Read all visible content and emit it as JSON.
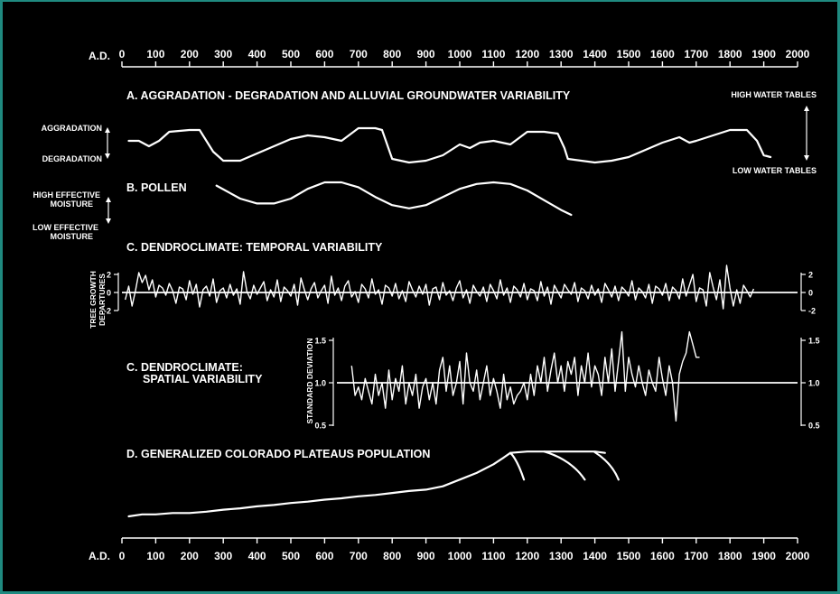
{
  "colors": {
    "background": "#000000",
    "foreground": "#ffffff",
    "border": "#1f8a80"
  },
  "axis": {
    "label": "A.D.",
    "ticks": [
      "0",
      "100",
      "200",
      "300",
      "400",
      "500",
      "600",
      "700",
      "800",
      "900",
      "1000",
      "1100",
      "1200",
      "1300",
      "1400",
      "1500",
      "1600",
      "1700",
      "1800",
      "1900",
      "2000"
    ]
  },
  "panels": {
    "a": {
      "title": "A.  AGGRADATION - DEGRADATION AND ALLUVIAL GROUNDWATER VARIABILITY",
      "left_top": "AGGRADATION",
      "left_bottom": "DEGRADATION",
      "right_top": "HIGH WATER TABLES",
      "right_bottom": "LOW WATER TABLES"
    },
    "b": {
      "title": "B.  POLLEN",
      "left_top_1": "HIGH EFFECTIVE",
      "left_top_2": "MOISTURE",
      "left_bottom_1": "LOW EFFECTIVE",
      "left_bottom_2": "MOISTURE"
    },
    "c1": {
      "title": "C.  DENDROCLIMATE:  TEMPORAL VARIABILITY",
      "ylabel_1": "TREE GROWTH",
      "ylabel_2": "DEPARTURES",
      "ticks": [
        "2",
        "0",
        "-2"
      ]
    },
    "c2": {
      "title_1": "C.  DENDROCLIMATE:",
      "title_2": "SPATIAL VARIABILITY",
      "ylabel": "STANDARD DEVIATION",
      "ticks": [
        "1.5",
        "1.0",
        "0.5"
      ]
    },
    "d": {
      "title": "D.  GENERALIZED COLORADO PLATEAUS POPULATION"
    }
  },
  "chart_data": [
    {
      "type": "line",
      "title": "A.  AGGRADATION - DEGRADATION AND ALLUVIAL GROUNDWATER VARIABILITY",
      "scale": "relative (degradation = 0, aggradation = 1)",
      "x": [
        20,
        50,
        80,
        110,
        140,
        200,
        230,
        270,
        300,
        350,
        400,
        450,
        500,
        550,
        600,
        650,
        700,
        750,
        770,
        800,
        850,
        900,
        950,
        1000,
        1030,
        1060,
        1100,
        1150,
        1200,
        1250,
        1290,
        1310,
        1320,
        1400,
        1450,
        1500,
        1550,
        1600,
        1650,
        1680,
        1700,
        1750,
        1800,
        1850,
        1880,
        1900,
        1920
      ],
      "y": [
        0.6,
        0.6,
        0.45,
        0.6,
        0.85,
        0.9,
        0.9,
        0.3,
        0.05,
        0.05,
        0.25,
        0.45,
        0.65,
        0.75,
        0.7,
        0.6,
        0.95,
        0.95,
        0.9,
        0.1,
        0.0,
        0.05,
        0.2,
        0.5,
        0.4,
        0.55,
        0.6,
        0.5,
        0.85,
        0.85,
        0.8,
        0.4,
        0.1,
        0.0,
        0.05,
        0.15,
        0.35,
        0.55,
        0.7,
        0.55,
        0.6,
        0.75,
        0.9,
        0.9,
        0.6,
        0.2,
        0.15
      ]
    },
    {
      "type": "line",
      "title": "B.  POLLEN",
      "scale": "relative effective moisture (low = 0, high = 1)",
      "x": [
        280,
        350,
        400,
        450,
        500,
        550,
        600,
        650,
        700,
        750,
        800,
        850,
        900,
        950,
        1000,
        1050,
        1100,
        1150,
        1200,
        1250,
        1300,
        1330
      ],
      "y": [
        0.9,
        0.5,
        0.35,
        0.35,
        0.5,
        0.8,
        1.0,
        1.0,
        0.85,
        0.55,
        0.3,
        0.2,
        0.3,
        0.55,
        0.8,
        0.95,
        1.0,
        0.95,
        0.75,
        0.45,
        0.15,
        0.0
      ]
    },
    {
      "type": "line",
      "title": "C.  DENDROCLIMATE:  TEMPORAL VARIABILITY",
      "ylabel": "TREE GROWTH DEPARTURES",
      "ylim": [
        -2.5,
        3
      ],
      "x_start": 10,
      "x_step": 10,
      "values": [
        -0.8,
        0.7,
        -1.5,
        0.2,
        2.2,
        1.1,
        1.9,
        0.3,
        1.4,
        -0.5,
        0.8,
        0.5,
        -0.3,
        1.0,
        0.2,
        -1.2,
        0.6,
        0.4,
        -0.8,
        1.3,
        -0.2,
        0.9,
        -1.6,
        0.3,
        0.7,
        -0.4,
        1.5,
        -1.1,
        0.2,
        0.5,
        -0.6,
        0.9,
        -0.3,
        0.4,
        -1.3,
        2.3,
        0.1,
        -0.7,
        0.8,
        -0.2,
        0.5,
        1.2,
        -0.9,
        0.3,
        -0.5,
        1.4,
        -1.0,
        0.6,
        0.2,
        -0.4,
        0.9,
        -1.4,
        1.6,
        0.3,
        -0.8,
        0.4,
        1.1,
        -0.6,
        0.2,
        0.8,
        -1.2,
        1.8,
        -0.3,
        0.5,
        -0.9,
        0.7,
        1.3,
        -0.5,
        0.1,
        -1.1,
        0.9,
        0.4,
        -0.6,
        1.5,
        -0.2,
        0.3,
        -1.3,
        0.8,
        0.5,
        -0.4,
        1.0,
        -0.7,
        0.2,
        -1.0,
        1.2,
        0.3,
        -0.5,
        0.7,
        -0.2,
        0.9,
        -1.4,
        0.4,
        0.6,
        -0.8,
        1.1,
        -0.3,
        0.2,
        -0.9,
        0.5,
        1.3,
        -0.6,
        0.3,
        -1.2,
        0.8,
        0.1,
        -0.4,
        0.6,
        -1.0,
        0.9,
        0.2,
        -0.7,
        1.4,
        -0.3,
        0.5,
        -1.1,
        0.7,
        0.3,
        -0.5,
        1.0,
        -0.8,
        0.4,
        0.2,
        -0.9,
        1.2,
        -0.4,
        0.6,
        -1.3,
        0.8,
        0.1,
        -0.6,
        0.9,
        0.3,
        -0.2,
        1.1,
        -1.0,
        0.5,
        0.2,
        -0.7,
        0.8,
        -0.3,
        0.4,
        -1.1,
        1.0,
        0.3,
        -0.5,
        0.7,
        -0.9,
        0.6,
        0.2,
        -0.4,
        1.3,
        -0.8,
        0.5,
        0.1,
        -0.6,
        0.9,
        -1.2,
        0.7,
        0.4,
        -0.3,
        1.0,
        -0.9,
        0.6,
        0.2,
        -0.7,
        1.5,
        -0.4,
        0.8,
        2.0,
        -1.0,
        0.5,
        0.3,
        -1.5,
        2.2,
        0.6,
        -0.8,
        1.4,
        -1.8,
        3.0,
        0.5,
        -1.5,
        0.3,
        -1.2,
        0.8,
        0.2,
        -0.5,
        0.4
      ]
    },
    {
      "type": "line",
      "title": "C.  DENDROCLIMATE:  SPATIAL VARIABILITY",
      "ylabel": "STANDARD DEVIATION",
      "ylim": [
        0.5,
        1.6
      ],
      "x_start": 680,
      "x_step": 10,
      "values": [
        1.2,
        0.85,
        0.95,
        0.8,
        1.05,
        0.9,
        0.75,
        1.1,
        0.85,
        1.0,
        0.7,
        1.15,
        0.8,
        1.05,
        0.9,
        1.2,
        0.75,
        1.0,
        0.85,
        1.1,
        0.7,
        0.95,
        1.05,
        0.8,
        1.0,
        0.75,
        1.15,
        1.3,
        0.9,
        1.2,
        0.85,
        1.0,
        1.25,
        0.75,
        1.35,
        1.0,
        0.9,
        1.15,
        0.8,
        1.0,
        1.2,
        0.85,
        1.05,
        0.9,
        0.7,
        1.1,
        0.8,
        0.95,
        0.75,
        0.85,
        0.9,
        1.0,
        0.8,
        1.1,
        0.85,
        1.2,
        1.0,
        1.3,
        0.9,
        1.15,
        1.35,
        1.0,
        1.2,
        0.9,
        1.25,
        1.1,
        1.3,
        0.85,
        1.2,
        1.0,
        1.35,
        0.95,
        1.2,
        1.1,
        0.85,
        1.3,
        1.0,
        1.4,
        0.9,
        1.25,
        1.6,
        0.9,
        1.3,
        1.1,
        0.95,
        1.2,
        1.0,
        0.85,
        1.15,
        1.0,
        0.9,
        1.3,
        1.05,
        0.85,
        1.2,
        1.0,
        0.55,
        1.1,
        1.25,
        1.35,
        1.6,
        1.45,
        1.3,
        1.3
      ]
    },
    {
      "type": "line",
      "title": "D.  GENERALIZED COLORADO PLATEAUS POPULATION",
      "scale": "relative population (0 = baseline, 1 = peak)",
      "x": [
        20,
        60,
        100,
        150,
        200,
        250,
        300,
        350,
        400,
        450,
        500,
        550,
        600,
        650,
        700,
        750,
        800,
        850,
        900,
        950,
        1000,
        1050,
        1100,
        1130,
        1150,
        1200,
        1250,
        1300,
        1350,
        1400,
        1430
      ],
      "y": [
        0.0,
        0.03,
        0.03,
        0.05,
        0.05,
        0.07,
        0.1,
        0.12,
        0.15,
        0.17,
        0.2,
        0.22,
        0.25,
        0.27,
        0.3,
        0.32,
        0.35,
        0.38,
        0.4,
        0.45,
        0.55,
        0.65,
        0.78,
        0.88,
        0.95,
        0.97,
        0.97,
        0.97,
        0.97,
        0.97,
        0.95
      ],
      "declines": [
        {
          "x": [
            1150,
            1170,
            1190
          ],
          "y": [
            0.95,
            0.85,
            0.55
          ]
        },
        {
          "x": [
            1250,
            1330,
            1370
          ],
          "y": [
            0.97,
            0.85,
            0.55
          ]
        },
        {
          "x": [
            1400,
            1450,
            1470
          ],
          "y": [
            0.96,
            0.8,
            0.55
          ]
        }
      ]
    }
  ]
}
